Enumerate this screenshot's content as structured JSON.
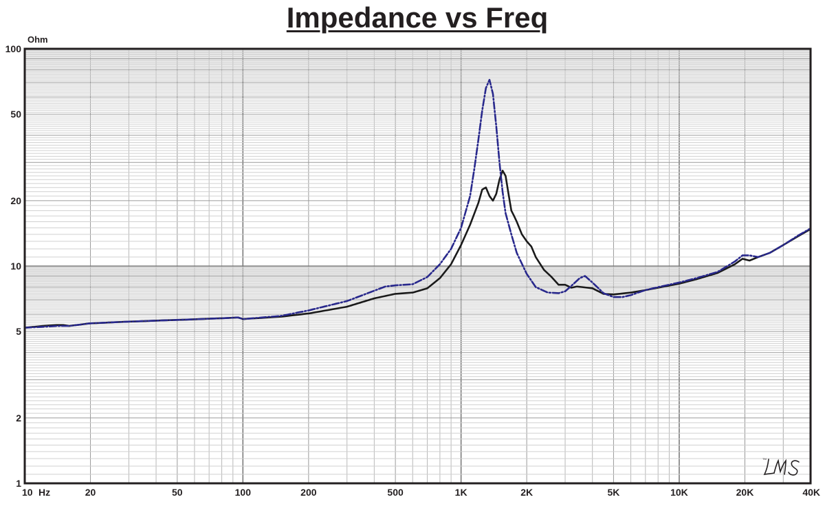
{
  "chart_data": {
    "type": "line",
    "title": "Impedance vs Freq",
    "ylabel": "Ohm",
    "x_scale": "log",
    "y_scale": "log",
    "xlim": [
      10,
      40000
    ],
    "ylim": [
      1,
      100
    ],
    "grid": true,
    "x_ticks": [
      {
        "value": 10,
        "label": "10"
      },
      {
        "value": 20,
        "label": "20"
      },
      {
        "value": 50,
        "label": "50"
      },
      {
        "value": 100,
        "label": "100"
      },
      {
        "value": 200,
        "label": "200"
      },
      {
        "value": 500,
        "label": "500"
      },
      {
        "value": 1000,
        "label": "1K"
      },
      {
        "value": 2000,
        "label": "2K"
      },
      {
        "value": 5000,
        "label": "5K"
      },
      {
        "value": 10000,
        "label": "10K"
      },
      {
        "value": 20000,
        "label": "20K"
      },
      {
        "value": 40000,
        "label": "40K"
      }
    ],
    "x_unit": "Hz",
    "y_ticks": [
      {
        "value": 1,
        "label": "1"
      },
      {
        "value": 2,
        "label": "2"
      },
      {
        "value": 5,
        "label": "5"
      },
      {
        "value": 10,
        "label": "10"
      },
      {
        "value": 20,
        "label": "20"
      },
      {
        "value": 50,
        "label": "50"
      },
      {
        "value": 100,
        "label": "100"
      }
    ],
    "series": [
      {
        "color": "#1a1a1a",
        "style": "solid",
        "x": [
          10,
          12,
          14,
          15,
          16,
          20,
          30,
          50,
          80,
          95,
          100,
          150,
          200,
          300,
          400,
          500,
          600,
          700,
          800,
          900,
          1000,
          1100,
          1200,
          1250,
          1300,
          1350,
          1400,
          1450,
          1500,
          1550,
          1600,
          1650,
          1700,
          1750,
          1800,
          1900,
          2000,
          2100,
          2200,
          2400,
          2600,
          2800,
          3000,
          3200,
          3400,
          3600,
          4000,
          4500,
          5000,
          6000,
          7000,
          8000,
          10000,
          12000,
          15000,
          18000,
          19500,
          21000,
          23000,
          26000,
          30000,
          35000,
          40000
        ],
        "y": [
          5.2,
          5.3,
          5.35,
          5.35,
          5.3,
          5.45,
          5.55,
          5.65,
          5.75,
          5.8,
          5.7,
          5.85,
          6.05,
          6.5,
          7.1,
          7.45,
          7.55,
          7.9,
          8.8,
          10.2,
          12.5,
          15.5,
          19.5,
          22.5,
          23.0,
          21.0,
          20.0,
          21.5,
          25.0,
          27.5,
          26.0,
          21.5,
          18.0,
          17.0,
          16.0,
          14.0,
          13.0,
          12.3,
          11.0,
          9.6,
          8.9,
          8.2,
          8.2,
          7.95,
          8.05,
          8.0,
          7.9,
          7.45,
          7.4,
          7.55,
          7.75,
          7.95,
          8.3,
          8.7,
          9.3,
          10.2,
          10.8,
          10.6,
          11.0,
          11.5,
          12.5,
          13.7,
          14.8
        ]
      },
      {
        "color": "#28288c",
        "style": "dashed",
        "x": [
          10,
          12,
          14,
          15,
          16,
          20,
          30,
          50,
          80,
          95,
          100,
          150,
          200,
          300,
          400,
          450,
          500,
          600,
          700,
          800,
          900,
          1000,
          1100,
          1150,
          1200,
          1250,
          1300,
          1350,
          1400,
          1450,
          1500,
          1550,
          1600,
          1700,
          1800,
          2000,
          2200,
          2500,
          2800,
          3000,
          3200,
          3500,
          3700,
          4000,
          4500,
          5000,
          5500,
          6000,
          7000,
          8000,
          10000,
          12000,
          15000,
          18000,
          19500,
          21000,
          23000,
          26000,
          30000,
          35000,
          40000
        ],
        "y": [
          5.2,
          5.25,
          5.3,
          5.3,
          5.3,
          5.45,
          5.55,
          5.65,
          5.75,
          5.8,
          5.7,
          5.9,
          6.25,
          6.9,
          7.7,
          8.05,
          8.15,
          8.25,
          8.9,
          10.2,
          12.0,
          15.0,
          21.0,
          28.0,
          38.0,
          52.0,
          66.0,
          72.0,
          62.0,
          44.0,
          30.0,
          22.0,
          17.5,
          14.0,
          11.5,
          9.2,
          8.0,
          7.55,
          7.5,
          7.65,
          8.1,
          8.8,
          9.0,
          8.4,
          7.5,
          7.2,
          7.2,
          7.35,
          7.75,
          8.0,
          8.4,
          8.8,
          9.4,
          10.5,
          11.2,
          11.2,
          11.0,
          11.5,
          12.5,
          13.8,
          14.9
        ]
      }
    ]
  },
  "watermark": "LMS"
}
